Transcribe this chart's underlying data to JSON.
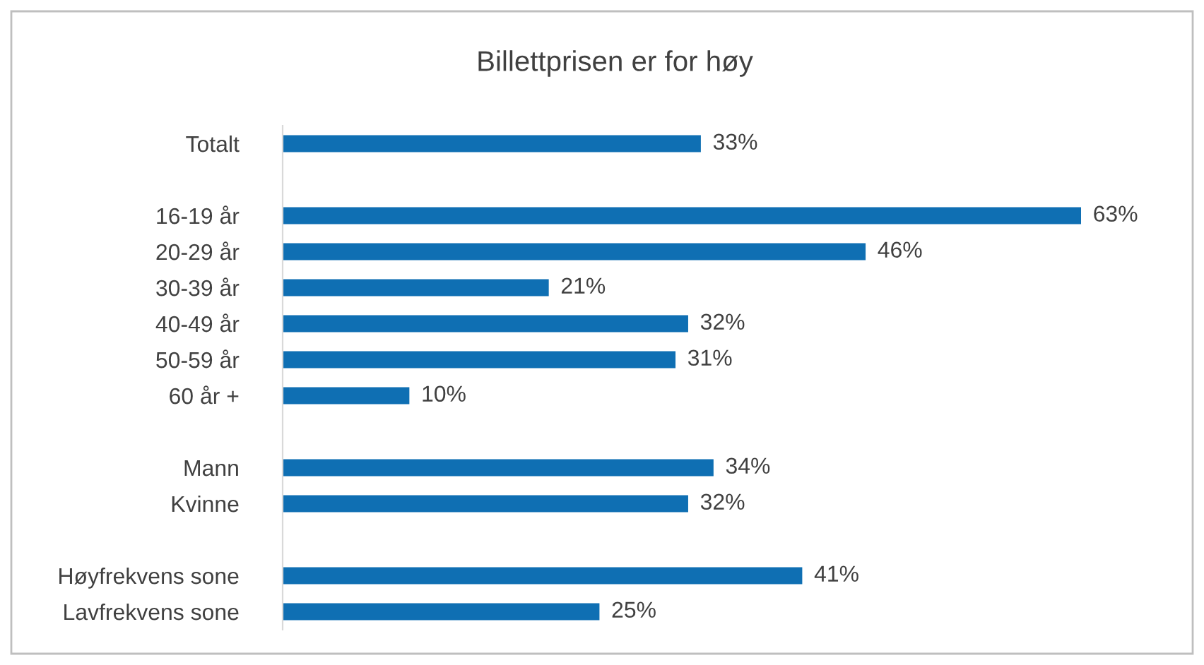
{
  "chart_data": {
    "type": "bar",
    "orientation": "horizontal",
    "title": "Billettprisen er for høy",
    "categories": [
      "Totalt",
      null,
      "16-19 år",
      "20-29 år",
      "30-39 år",
      "40-49 år",
      "50-59 år",
      "60 år +",
      null,
      "Mann",
      "Kvinne",
      null,
      "Høyfrekvens sone",
      "Lavfrekvens sone"
    ],
    "values": [
      33,
      null,
      63,
      46,
      21,
      32,
      31,
      10,
      null,
      34,
      32,
      null,
      41,
      25
    ],
    "value_labels": [
      "33%",
      null,
      "63%",
      "46%",
      "21%",
      "32%",
      "31%",
      "10%",
      null,
      "34%",
      "32%",
      null,
      "41%",
      "25%"
    ],
    "color": "#0f6fb3",
    "grid": false,
    "legend": false
  }
}
